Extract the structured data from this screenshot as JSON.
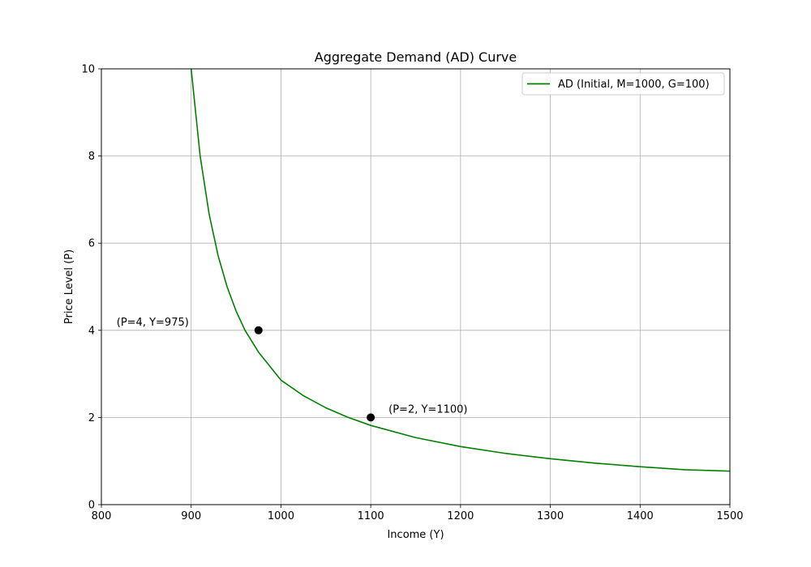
{
  "chart_data": {
    "type": "line",
    "title": "Aggregate Demand (AD) Curve",
    "xlabel": "Income (Y)",
    "ylabel": "Price Level (P)",
    "xlim": [
      800,
      1500
    ],
    "ylim": [
      0,
      10
    ],
    "x_ticks": [
      800,
      900,
      1000,
      1100,
      1200,
      1300,
      1400,
      1500
    ],
    "y_ticks": [
      0,
      2,
      4,
      6,
      8,
      10
    ],
    "grid": true,
    "legend_position": "upper-right",
    "series": [
      {
        "name": "AD (Initial, M=1000, G=100)",
        "color": "#008000",
        "x": [
          900,
          910,
          920,
          930,
          940,
          950,
          960,
          975,
          1000,
          1025,
          1050,
          1075,
          1100,
          1150,
          1200,
          1250,
          1300,
          1350,
          1400,
          1450,
          1500
        ],
        "y": [
          10.0,
          8.0,
          6.667,
          5.714,
          5.0,
          4.444,
          4.0,
          3.5,
          2.857,
          2.5,
          2.222,
          2.0,
          1.818,
          1.538,
          1.333,
          1.176,
          1.053,
          0.952,
          0.87,
          0.8,
          0.769
        ]
      }
    ],
    "points": [
      {
        "x": 975,
        "y": 4,
        "label": "(P=4, Y=975)",
        "color": "#000000"
      },
      {
        "x": 1100,
        "y": 2,
        "label": "(P=2, Y=1100)",
        "color": "#000000"
      }
    ]
  }
}
